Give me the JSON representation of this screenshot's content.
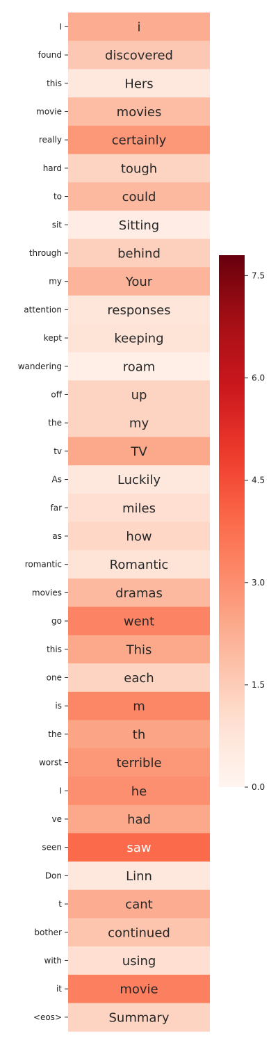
{
  "chart_data": {
    "type": "heatmap",
    "title": "",
    "xlabel": "",
    "ylabel": "",
    "row_labels": [
      "I",
      "found",
      "this",
      "movie",
      "really",
      "hard",
      "to",
      "sit",
      "through",
      "my",
      "attention",
      "kept",
      "wandering",
      "off",
      "the",
      "tv",
      "As",
      "far",
      "as",
      "romantic",
      "movies",
      "go",
      "this",
      "one",
      "is",
      "the",
      "worst",
      "I",
      "ve",
      "seen",
      "Don",
      "t",
      "bother",
      "with",
      "it",
      "<eos>"
    ],
    "cell_text": [
      "i",
      "discovered",
      "Hers",
      "movies",
      "certainly",
      "tough",
      "could",
      "Sitting",
      "behind",
      "Your",
      "responses",
      "keeping",
      "roam",
      "up",
      "my",
      "TV",
      "Luckily",
      "miles",
      "how",
      "Romantic",
      "dramas",
      "went",
      "This",
      "each",
      "m",
      "th",
      "terrible",
      "he",
      "had",
      "saw",
      "Linn",
      "cant",
      "continued",
      "using",
      "movie",
      "Summary"
    ],
    "values": [
      2.3,
      1.6,
      0.6,
      1.9,
      2.8,
      1.3,
      2.0,
      0.4,
      1.4,
      2.1,
      0.7,
      0.8,
      0.3,
      1.3,
      1.3,
      2.4,
      0.6,
      1.0,
      1.2,
      0.8,
      2.0,
      3.3,
      2.4,
      1.3,
      3.2,
      2.5,
      2.8,
      3.0,
      2.4,
      3.9,
      0.6,
      2.3,
      1.7,
      1.0,
      3.4,
      1.3
    ],
    "colormap": "Reds",
    "colorbar": {
      "min": 0,
      "max": 7.8,
      "ticks": [
        "0.0",
        "1.5",
        "3.0",
        "4.5",
        "6.0",
        "7.5"
      ]
    }
  }
}
